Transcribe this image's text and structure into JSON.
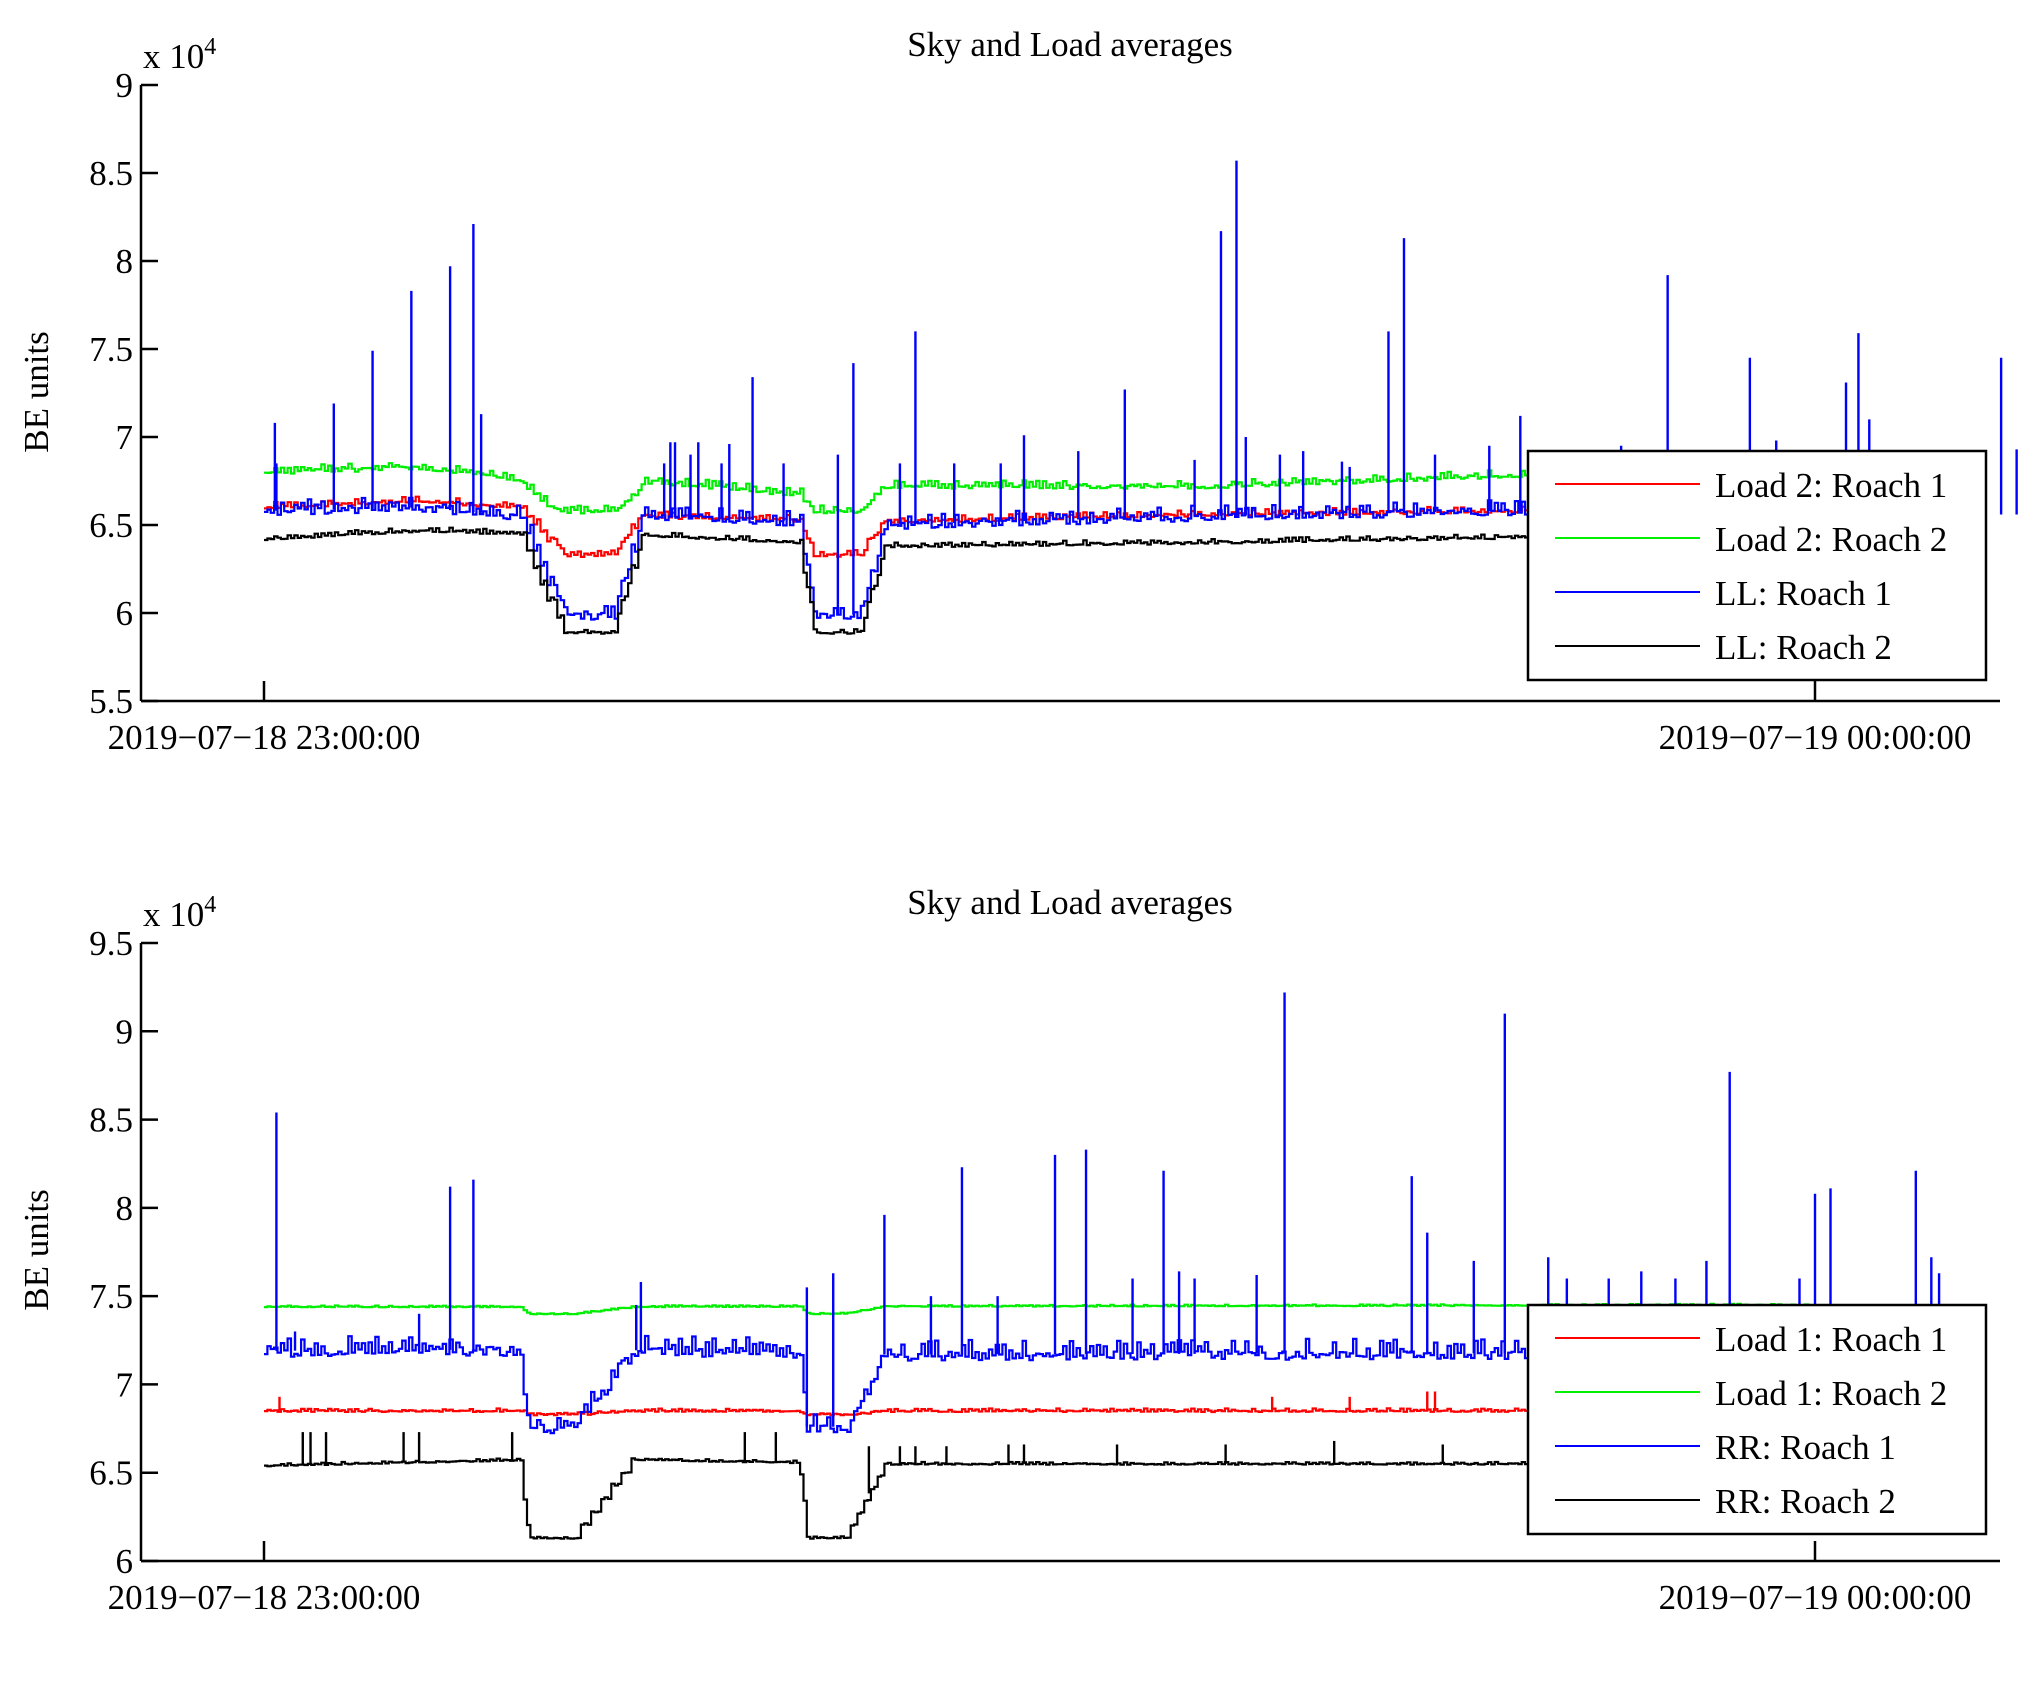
{
  "chart_data": [
    {
      "type": "line",
      "title": "Sky and Load averages",
      "xlabel": "",
      "ylabel": "BE units",
      "y_multiplier_label": "x 10",
      "y_multiplier_exponent": "4",
      "ylim": [
        5.5,
        9.0
      ],
      "yticks": [
        "9",
        "8.5",
        "8",
        "7.5",
        "7",
        "6.5",
        "6",
        "5.5"
      ],
      "ytick_values": [
        9,
        8.5,
        8,
        7.5,
        7,
        6.5,
        6,
        5.5
      ],
      "xlim_fraction": [
        -0.079,
        1.12
      ],
      "xticks": [
        {
          "label": "2019−07−18 23:00:00",
          "pos": 0
        },
        {
          "label": "2019−07−19 00:00:00",
          "pos": 1
        }
      ],
      "legend_location": "bottom-right",
      "grid": false,
      "dips": [
        [
          0.165,
          0.195,
          0.225,
          0.245
        ],
        [
          0.345,
          0.355,
          0.385,
          0.4
        ]
      ],
      "series": [
        {
          "name": "Load 2: Roach 1",
          "color": "#ff0000",
          "baseline": 6.58,
          "noise": 0.04,
          "dip_to": 6.33,
          "drift": [
            [
              0,
              6.6
            ],
            [
              0.1,
              6.64
            ],
            [
              0.165,
              6.6
            ],
            [
              0.25,
              6.55
            ],
            [
              0.4,
              6.52
            ],
            [
              0.6,
              6.56
            ],
            [
              0.8,
              6.58
            ],
            [
              1,
              6.57
            ]
          ],
          "spikes": []
        },
        {
          "name": "Load 2: Roach 2",
          "color": "#00ee00",
          "baseline": 6.78,
          "noise": 0.05,
          "dip_to": 6.58,
          "drift": [
            [
              0,
              6.8
            ],
            [
              0.1,
              6.83
            ],
            [
              0.165,
              6.76
            ],
            [
              0.2,
              6.6
            ],
            [
              0.25,
              6.75
            ],
            [
              0.35,
              6.67
            ],
            [
              0.4,
              6.72
            ],
            [
              0.6,
              6.72
            ],
            [
              0.8,
              6.78
            ],
            [
              1,
              6.78
            ]
          ],
          "spikes": []
        },
        {
          "name": "LL: Roach 1",
          "color": "#0000ff",
          "baseline": 6.55,
          "noise": 0.09,
          "dip_to": 5.99,
          "drift": [
            [
              0,
              6.58
            ],
            [
              0.1,
              6.6
            ],
            [
              0.165,
              6.55
            ],
            [
              0.25,
              6.55
            ],
            [
              0.4,
              6.5
            ],
            [
              0.6,
              6.55
            ],
            [
              0.8,
              6.58
            ],
            [
              1,
              6.56
            ]
          ],
          "spikes": [
            [
              0.007,
              7.08
            ],
            [
              0.008,
              6.85
            ],
            [
              0.045,
              7.19
            ],
            [
              0.07,
              7.49
            ],
            [
              0.095,
              7.83
            ],
            [
              0.12,
              7.97
            ],
            [
              0.135,
              8.21
            ],
            [
              0.14,
              7.13
            ],
            [
              0.258,
              6.85
            ],
            [
              0.262,
              6.97
            ],
            [
              0.265,
              6.97
            ],
            [
              0.275,
              6.9
            ],
            [
              0.28,
              6.97
            ],
            [
              0.295,
              6.85
            ],
            [
              0.3,
              6.96
            ],
            [
              0.315,
              7.34
            ],
            [
              0.335,
              6.85
            ],
            [
              0.38,
              7.42
            ],
            [
              0.37,
              6.9
            ],
            [
              0.41,
              6.85
            ],
            [
              0.42,
              7.6
            ],
            [
              0.445,
              6.85
            ],
            [
              0.475,
              6.85
            ],
            [
              0.49,
              7.01
            ],
            [
              0.525,
              6.92
            ],
            [
              0.555,
              7.27
            ],
            [
              0.6,
              6.87
            ],
            [
              0.617,
              8.17
            ],
            [
              0.627,
              8.57
            ],
            [
              0.633,
              7.0
            ],
            [
              0.655,
              6.9
            ],
            [
              0.67,
              6.92
            ],
            [
              0.695,
              6.86
            ],
            [
              0.7,
              6.83
            ],
            [
              0.725,
              7.6
            ],
            [
              0.735,
              8.13
            ],
            [
              0.755,
              6.9
            ],
            [
              0.79,
              6.95
            ],
            [
              0.81,
              7.12
            ],
            [
              0.825,
              6.85
            ],
            [
              0.84,
              6.92
            ],
            [
              0.86,
              6.87
            ],
            [
              0.87,
              6.85
            ],
            [
              0.875,
              6.95
            ],
            [
              0.905,
              7.92
            ],
            [
              0.92,
              6.9
            ],
            [
              0.958,
              7.45
            ],
            [
              0.975,
              6.98
            ],
            [
              1.02,
              7.31
            ],
            [
              1.028,
              7.59
            ],
            [
              1.035,
              7.1
            ],
            [
              1.12,
              7.45
            ],
            [
              1.13,
              6.93
            ]
          ]
        },
        {
          "name": "LL: Roach 2",
          "color": "#000000",
          "baseline": 6.42,
          "noise": 0.03,
          "dip_to": 5.89,
          "drift": [
            [
              0,
              6.42
            ],
            [
              0.1,
              6.47
            ],
            [
              0.165,
              6.45
            ],
            [
              0.25,
              6.44
            ],
            [
              0.4,
              6.38
            ],
            [
              0.6,
              6.4
            ],
            [
              0.8,
              6.43
            ],
            [
              1,
              6.42
            ]
          ],
          "spikes": []
        }
      ]
    },
    {
      "type": "line",
      "title": "Sky and Load averages",
      "xlabel": "",
      "ylabel": "BE units",
      "y_multiplier_label": "x 10",
      "y_multiplier_exponent": "4",
      "ylim": [
        6.0,
        9.5
      ],
      "yticks": [
        "9.5",
        "9",
        "8.5",
        "8",
        "7.5",
        "7",
        "6.5",
        "6"
      ],
      "ytick_values": [
        9.5,
        9,
        8.5,
        8,
        7.5,
        7,
        6.5,
        6
      ],
      "xlim_fraction": [
        -0.079,
        1.12
      ],
      "xticks": [
        {
          "label": "2019−07−18 23:00:00",
          "pos": 0
        },
        {
          "label": "2019−07−19 00:00:00",
          "pos": 1
        }
      ],
      "legend_location": "bottom-right",
      "grid": false,
      "dips": [
        [
          0.165,
          0.17,
          0.2,
          0.24
        ],
        [
          0.345,
          0.35,
          0.375,
          0.4
        ]
      ],
      "series": [
        {
          "name": "Load 1: Roach 1",
          "color": "#ff0000",
          "baseline": 6.85,
          "noise": 0.02,
          "dip_to": 6.83,
          "drift": [
            [
              0,
              6.85
            ],
            [
              1,
              6.85
            ]
          ],
          "spikes": [
            [
              0.01,
              6.93
            ],
            [
              0.65,
              6.93
            ],
            [
              0.7,
              6.93
            ],
            [
              0.755,
              6.96
            ],
            [
              0.75,
              6.96
            ]
          ]
        },
        {
          "name": "Load 1: Roach 2",
          "color": "#00ee00",
          "baseline": 7.44,
          "noise": 0.01,
          "dip_to": 7.4,
          "drift": [
            [
              0,
              7.44
            ],
            [
              0.2,
              7.44
            ],
            [
              1,
              7.45
            ]
          ],
          "spikes": []
        },
        {
          "name": "RR: Roach 1",
          "color": "#0000ff",
          "baseline": 7.19,
          "noise": 0.12,
          "dip_to": 6.76,
          "drift": [
            [
              0,
              7.19
            ],
            [
              0.2,
              7.2
            ],
            [
              0.4,
              7.17
            ],
            [
              1,
              7.18
            ]
          ],
          "spikes": [
            [
              0.008,
              8.54
            ],
            [
              0.02,
              7.3
            ],
            [
              0.1,
              7.4
            ],
            [
              0.12,
              8.12
            ],
            [
              0.135,
              8.16
            ],
            [
              0.24,
              7.45
            ],
            [
              0.24,
              7.45
            ],
            [
              0.243,
              7.58
            ],
            [
              0.35,
              7.55
            ],
            [
              0.367,
              7.63
            ],
            [
              0.4,
              7.96
            ],
            [
              0.43,
              7.5
            ],
            [
              0.45,
              8.23
            ],
            [
              0.473,
              7.5
            ],
            [
              0.51,
              8.3
            ],
            [
              0.53,
              8.33
            ],
            [
              0.56,
              7.6
            ],
            [
              0.58,
              8.21
            ],
            [
              0.59,
              7.64
            ],
            [
              0.6,
              7.6
            ],
            [
              0.64,
              7.62
            ],
            [
              0.658,
              9.22
            ],
            [
              0.74,
              8.18
            ],
            [
              0.75,
              7.86
            ],
            [
              0.78,
              7.7
            ],
            [
              0.8,
              9.1
            ],
            [
              0.828,
              7.72
            ],
            [
              0.84,
              7.6
            ],
            [
              0.867,
              7.6
            ],
            [
              0.888,
              7.64
            ],
            [
              0.91,
              7.6
            ],
            [
              0.93,
              7.7
            ],
            [
              0.945,
              8.77
            ],
            [
              0.99,
              7.6
            ],
            [
              1.0,
              8.08
            ],
            [
              1.01,
              8.11
            ],
            [
              1.0,
              7.35
            ],
            [
              1.065,
              8.21
            ],
            [
              1.075,
              7.72
            ],
            [
              1.08,
              7.63
            ]
          ]
        },
        {
          "name": "RR: Roach 2",
          "color": "#000000",
          "baseline": 6.54,
          "noise": 0.015,
          "dip_to": 6.13,
          "drift": [
            [
              0,
              6.54
            ],
            [
              0.2,
              6.58
            ],
            [
              0.4,
              6.55
            ],
            [
              1,
              6.55
            ]
          ],
          "spikes": [
            [
              0.025,
              6.73
            ],
            [
              0.03,
              6.73
            ],
            [
              0.04,
              6.73
            ],
            [
              0.09,
              6.73
            ],
            [
              0.1,
              6.73
            ],
            [
              0.16,
              6.73
            ],
            [
              0.31,
              6.73
            ],
            [
              0.33,
              6.73
            ],
            [
              0.39,
              6.65
            ],
            [
              0.41,
              6.65
            ],
            [
              0.42,
              6.65
            ],
            [
              0.44,
              6.65
            ],
            [
              0.48,
              6.66
            ],
            [
              0.49,
              6.66
            ],
            [
              0.55,
              6.66
            ],
            [
              0.62,
              6.66
            ],
            [
              0.69,
              6.68
            ],
            [
              0.76,
              6.66
            ],
            [
              0.84,
              6.66
            ],
            [
              0.87,
              6.66
            ],
            [
              0.9,
              6.66
            ],
            [
              0.95,
              6.66
            ]
          ]
        }
      ]
    }
  ]
}
